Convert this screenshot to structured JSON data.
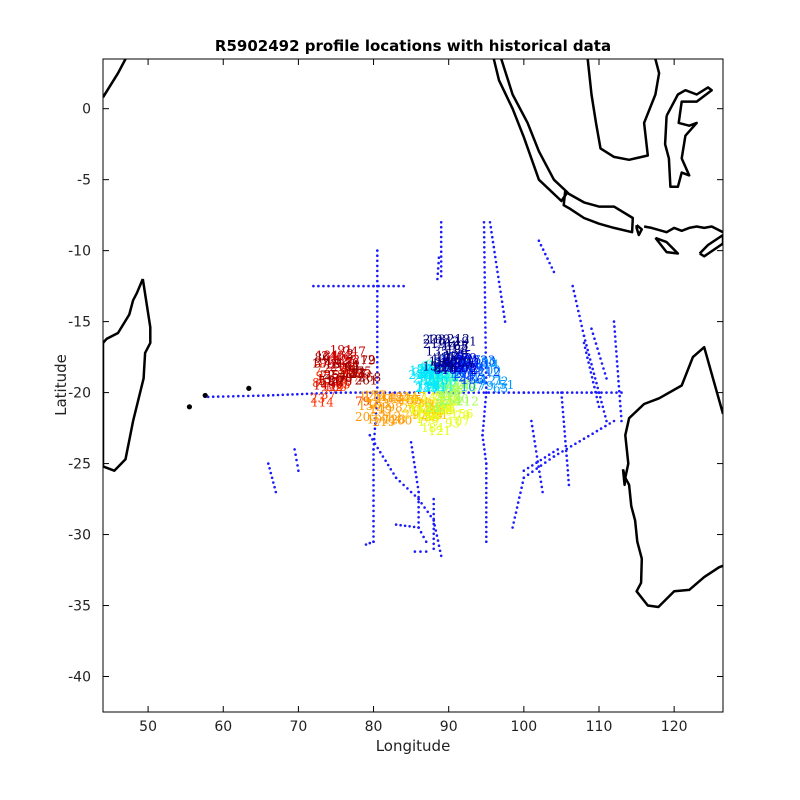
{
  "chart_data": {
    "type": "scatter",
    "title": "R5902492 profile locations with historical data",
    "xlabel": "Longitude",
    "ylabel": "Latitude",
    "xlim": [
      44,
      126.5
    ],
    "ylim": [
      -42.5,
      3.5
    ],
    "xticks": [
      50,
      60,
      70,
      80,
      90,
      100,
      110,
      120
    ],
    "yticks": [
      0,
      -5,
      -10,
      -15,
      -20,
      -25,
      -30,
      -35,
      -40
    ],
    "grid": false,
    "colors": {
      "historical": "#1a1aff",
      "coast": "#000000"
    },
    "historical_tracks": [
      [
        [
          58,
          -20.3
        ],
        [
          66,
          -20.2
        ],
        [
          75,
          -20
        ],
        [
          90,
          -20
        ],
        [
          100,
          -20
        ],
        [
          109,
          -20
        ],
        [
          113,
          -20
        ]
      ],
      [
        [
          72,
          -12.5
        ],
        [
          80,
          -12.5
        ],
        [
          84,
          -12.5
        ]
      ],
      [
        [
          80.5,
          -10
        ],
        [
          80.5,
          -20
        ],
        [
          80,
          -24
        ],
        [
          80,
          -30.5
        ],
        [
          79,
          -30.7
        ]
      ],
      [
        [
          79.5,
          -23
        ],
        [
          83,
          -26
        ],
        [
          86,
          -27.5
        ],
        [
          88,
          -29
        ],
        [
          89,
          -31.5
        ]
      ],
      [
        [
          85,
          -23.5
        ],
        [
          86,
          -27
        ],
        [
          86,
          -29.5
        ],
        [
          87,
          -30.5
        ]
      ],
      [
        [
          85.5,
          -31.2
        ],
        [
          87,
          -31.2
        ]
      ],
      [
        [
          88,
          -27.5
        ],
        [
          88,
          -31
        ]
      ],
      [
        [
          83,
          -29.3
        ],
        [
          86,
          -29.5
        ]
      ],
      [
        [
          88.7,
          -10.5
        ],
        [
          88.5,
          -12
        ]
      ],
      [
        [
          89,
          -8
        ],
        [
          89,
          -11.8
        ]
      ],
      [
        [
          94.7,
          -8
        ],
        [
          95,
          -20
        ],
        [
          94.5,
          -23
        ],
        [
          95,
          -25
        ],
        [
          95,
          -30.5
        ]
      ],
      [
        [
          95.5,
          -8
        ],
        [
          97.5,
          -15
        ]
      ],
      [
        [
          102,
          -9.3
        ],
        [
          104,
          -11.5
        ]
      ],
      [
        [
          106.5,
          -12.5
        ],
        [
          108,
          -16
        ],
        [
          110,
          -20
        ],
        [
          111,
          -22
        ]
      ],
      [
        [
          108,
          -16.5
        ],
        [
          110,
          -21
        ]
      ],
      [
        [
          109,
          -15.5
        ],
        [
          111,
          -19
        ]
      ],
      [
        [
          112,
          -15
        ],
        [
          113,
          -22
        ]
      ],
      [
        [
          101,
          -22
        ],
        [
          102.5,
          -27
        ]
      ],
      [
        [
          105,
          -20
        ],
        [
          106,
          -26.5
        ]
      ],
      [
        [
          98.5,
          -29.5
        ],
        [
          100,
          -26
        ],
        [
          104,
          -24.5
        ],
        [
          112,
          -22
        ]
      ],
      [
        [
          100,
          -25.5
        ],
        [
          104.5,
          -24
        ]
      ],
      [
        [
          66,
          -25
        ],
        [
          67,
          -27
        ]
      ],
      [
        [
          69.5,
          -24
        ],
        [
          70,
          -25.5
        ]
      ]
    ],
    "profile_groups": [
      {
        "lon": [
          72,
          79
        ],
        "lat": [
          -18.5,
          -21
        ],
        "color": "#ff3300"
      },
      {
        "lon": [
          73,
          79
        ],
        "lat": [
          -17,
          -20
        ],
        "color": "#cc0000"
      },
      {
        "lon": [
          73,
          80
        ],
        "lat": [
          -17.5,
          -19.5
        ],
        "color": "#990000"
      },
      {
        "lon": [
          79,
          86
        ],
        "lat": [
          -20.5,
          -22.5
        ],
        "color": "#ff9900"
      },
      {
        "lon": [
          85,
          90
        ],
        "lat": [
          -20.5,
          -22
        ],
        "color": "#ffcc00"
      },
      {
        "lon": [
          86,
          92
        ],
        "lat": [
          -20.5,
          -23
        ],
        "color": "#e6ff1a"
      },
      {
        "lon": [
          88,
          93
        ],
        "lat": [
          -19.5,
          -22
        ],
        "color": "#a6ff59"
      },
      {
        "lon": [
          87,
          90
        ],
        "lat": [
          -18,
          -20
        ],
        "color": "#33ffcc"
      },
      {
        "lon": [
          86,
          89
        ],
        "lat": [
          -18.5,
          -20
        ],
        "color": "#00e6ff"
      },
      {
        "lon": [
          91,
          98
        ],
        "lat": [
          -18,
          -20
        ],
        "color": "#0099ff"
      },
      {
        "lon": [
          90,
          96
        ],
        "lat": [
          -17.5,
          -19.5
        ],
        "color": "#0044ff"
      },
      {
        "lon": [
          89,
          93
        ],
        "lat": [
          -17.5,
          -19
        ],
        "color": "#0000cc"
      },
      {
        "lon": [
          88,
          93
        ],
        "lat": [
          -16.5,
          -18.5
        ],
        "color": "#000080"
      }
    ]
  }
}
